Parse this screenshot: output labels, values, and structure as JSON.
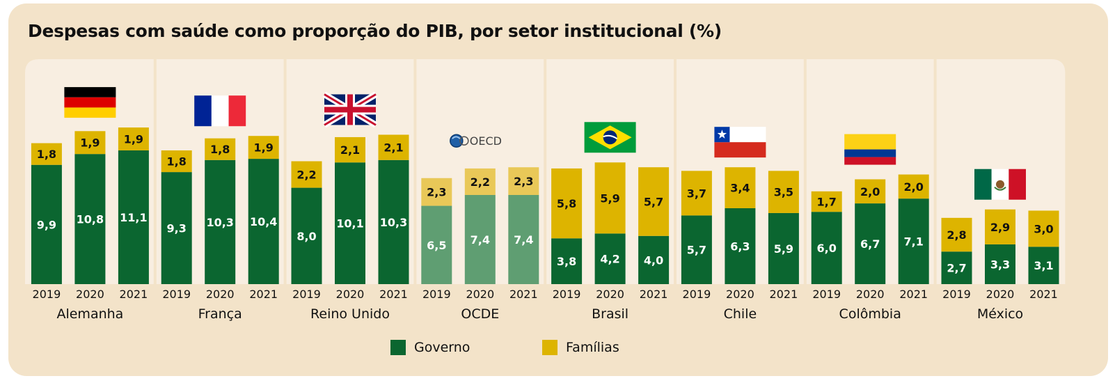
{
  "title": "Despesas com saúde como proporção do PIB, por setor institucional (%)",
  "colors": {
    "governo": "#0b6630",
    "familias": "#ddb400",
    "oecd_governo": "#5f9e72",
    "oecd_familias": "#e9c858",
    "panel_bg": "#f8eee1",
    "card_bg": "#f3e3c9"
  },
  "chart_data": {
    "type": "bar",
    "stacked": true,
    "title": "Despesas com saúde como proporção do PIB, por setor institucional (%)",
    "years": [
      "2019",
      "2020",
      "2021"
    ],
    "ylim": [
      0,
      14
    ],
    "grid": false,
    "legend_position": "bottom-center",
    "series": [
      {
        "name": "Governo",
        "key": "governo"
      },
      {
        "name": "Famílias",
        "key": "familias"
      }
    ],
    "groups": [
      {
        "name": "Alemanha",
        "flag": "germany-flag",
        "governo": [
          9.9,
          10.8,
          11.1
        ],
        "familias": [
          1.8,
          1.9,
          1.9
        ],
        "governo_labels": [
          "9,9",
          "10,8",
          "11,1"
        ],
        "familias_labels": [
          "1,8",
          "1,9",
          "1,9"
        ]
      },
      {
        "name": "França",
        "flag": "france-flag",
        "governo": [
          9.3,
          10.3,
          10.4
        ],
        "familias": [
          1.8,
          1.8,
          1.9
        ],
        "governo_labels": [
          "9,3",
          "10,3",
          "10,4"
        ],
        "familias_labels": [
          "1,8",
          "1,8",
          "1,9"
        ]
      },
      {
        "name": "Reino Unido",
        "flag": "uk-flag",
        "governo": [
          8.0,
          10.1,
          10.3
        ],
        "familias": [
          2.2,
          2.1,
          2.1
        ],
        "governo_labels": [
          "8,0",
          "10,1",
          "10,3"
        ],
        "familias_labels": [
          "2,2",
          "2,1",
          "2,1"
        ]
      },
      {
        "name": "OCDE",
        "flag": "oecd-logo",
        "logo_text": "OECD",
        "governo": [
          6.5,
          7.4,
          7.4
        ],
        "familias": [
          2.3,
          2.2,
          2.3
        ],
        "governo_labels": [
          "6,5",
          "7,4",
          "7,4"
        ],
        "familias_labels": [
          "2,3",
          "2,2",
          "2,3"
        ]
      },
      {
        "name": "Brasil",
        "flag": "brazil-flag",
        "governo": [
          3.8,
          4.2,
          4.0
        ],
        "familias": [
          5.8,
          5.9,
          5.7
        ],
        "governo_labels": [
          "3,8",
          "4,2",
          "4,0"
        ],
        "familias_labels": [
          "5,8",
          "5,9",
          "5,7"
        ]
      },
      {
        "name": "Chile",
        "flag": "chile-flag",
        "governo": [
          5.7,
          6.3,
          5.9
        ],
        "familias": [
          3.7,
          3.4,
          3.5
        ],
        "governo_labels": [
          "5,7",
          "6,3",
          "5,9"
        ],
        "familias_labels": [
          "3,7",
          "3,4",
          "3,5"
        ]
      },
      {
        "name": "Colômbia",
        "flag": "colombia-flag",
        "governo": [
          6.0,
          6.7,
          7.1
        ],
        "familias": [
          1.7,
          2.0,
          2.0
        ],
        "governo_labels": [
          "6,0",
          "6,7",
          "7,1"
        ],
        "familias_labels": [
          "1,7",
          "2,0",
          "2,0"
        ]
      },
      {
        "name": "México",
        "flag": "mexico-flag",
        "governo": [
          2.7,
          3.3,
          3.1
        ],
        "familias": [
          2.8,
          2.9,
          3.0
        ],
        "governo_labels": [
          "2,7",
          "3,3",
          "3,1"
        ],
        "familias_labels": [
          "2,8",
          "2,9",
          "3,0"
        ]
      }
    ]
  }
}
